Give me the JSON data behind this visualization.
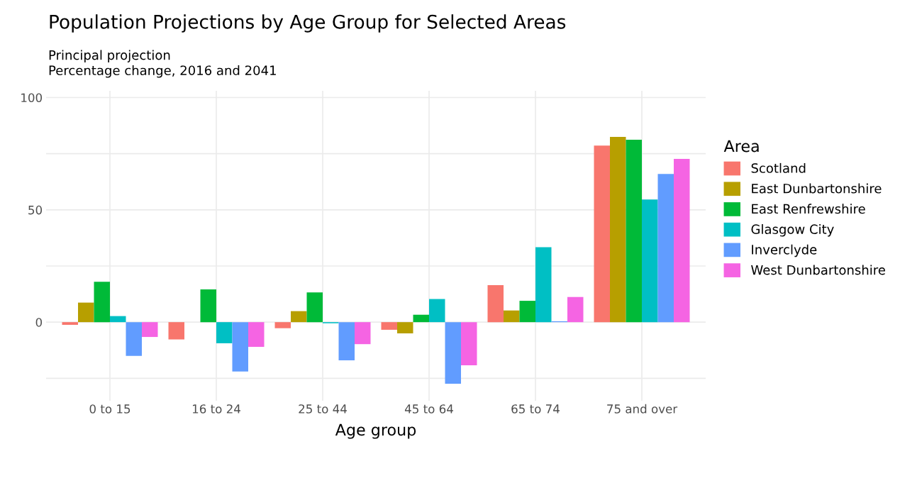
{
  "chart_data": {
    "type": "bar",
    "title": "Population Projections by Age Group for Selected Areas",
    "subtitle": "Principal projection\nPercentage change, 2016 and 2041",
    "xlabel": "Age group",
    "legend_title": "Area",
    "categories": [
      "0 to 15",
      "16 to 24",
      "25 to 44",
      "45 to 64",
      "65 to 74",
      "75 and over"
    ],
    "series": [
      {
        "name": "Scotland",
        "color": "#f8766d",
        "values": [
          -1.2,
          -7.7,
          -2.7,
          -3.4,
          16.5,
          78.6
        ]
      },
      {
        "name": "East Dunbartonshire",
        "color": "#b79f00",
        "values": [
          8.7,
          0,
          4.9,
          -5.0,
          5.2,
          82.5
        ]
      },
      {
        "name": "East Renfrewshire",
        "color": "#00ba38",
        "values": [
          18.0,
          14.6,
          13.2,
          3.3,
          9.5,
          81.2
        ]
      },
      {
        "name": "Glasgow City",
        "color": "#00bfc4",
        "values": [
          2.7,
          -9.4,
          -0.5,
          10.3,
          33.4,
          54.6
        ]
      },
      {
        "name": "Inverclyde",
        "color": "#619cff",
        "values": [
          -15.0,
          -22.0,
          -17.0,
          -27.4,
          0.4,
          66.0
        ]
      },
      {
        "name": "West Dunbartonshire",
        "color": "#f564e3",
        "values": [
          -6.6,
          -11.0,
          -9.8,
          -19.2,
          11.2,
          72.7
        ]
      }
    ],
    "ylim": [
      -35,
      103
    ],
    "yticks": [
      {
        "value": -25,
        "label": null
      },
      0,
      {
        "value": 25,
        "label": null
      },
      50,
      {
        "value": 75,
        "label": null
      },
      100
    ],
    "grid": true,
    "legend": "right"
  }
}
